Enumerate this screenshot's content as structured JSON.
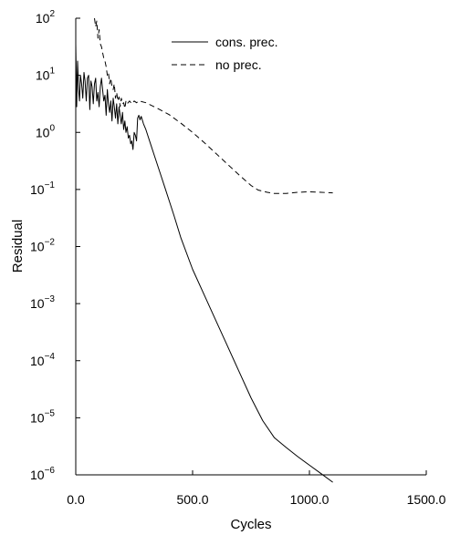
{
  "chart_data": {
    "type": "line",
    "xlabel": "Cycles",
    "ylabel": "Residual",
    "xlim": [
      0,
      1500
    ],
    "ylim_log10": [
      -6,
      2
    ],
    "y_scale": "log",
    "grid": false,
    "legend_position": "top-right",
    "x_ticks": [
      {
        "value": 0,
        "label": "0.0"
      },
      {
        "value": 500,
        "label": "500.0"
      },
      {
        "value": 1000,
        "label": "1000.0"
      },
      {
        "value": 1500,
        "label": "1500.0"
      }
    ],
    "y_ticks": [
      {
        "exp": 2,
        "base": "10",
        "sup": "2"
      },
      {
        "exp": 1,
        "base": "10",
        "sup": "1"
      },
      {
        "exp": 0,
        "base": "10",
        "sup": "0"
      },
      {
        "exp": -1,
        "base": "10",
        "sup": "−1"
      },
      {
        "exp": -2,
        "base": "10",
        "sup": "−2"
      },
      {
        "exp": -3,
        "base": "10",
        "sup": "−3"
      },
      {
        "exp": -4,
        "base": "10",
        "sup": "−4"
      },
      {
        "exp": -5,
        "base": "10",
        "sup": "−5"
      },
      {
        "exp": -6,
        "base": "10",
        "sup": "−6"
      }
    ],
    "series": [
      {
        "name": "cons. prec.",
        "style": "solid",
        "color": "#000000",
        "x": [
          0,
          4,
          8,
          12,
          16,
          20,
          25,
          30,
          35,
          40,
          45,
          50,
          55,
          60,
          65,
          70,
          75,
          80,
          85,
          90,
          95,
          100,
          105,
          110,
          115,
          120,
          125,
          130,
          135,
          140,
          145,
          150,
          155,
          160,
          165,
          170,
          175,
          180,
          185,
          190,
          195,
          200,
          205,
          210,
          215,
          220,
          225,
          230,
          235,
          240,
          245,
          250,
          255,
          260,
          265,
          270,
          275,
          280,
          290,
          300,
          320,
          340,
          360,
          380,
          400,
          420,
          450,
          500,
          550,
          600,
          650,
          700,
          750,
          800,
          850,
          900,
          950,
          1000,
          1050,
          1100
        ],
        "log10y": [
          1.55,
          0.45,
          1.25,
          0.75,
          0.55,
          1.0,
          0.85,
          0.6,
          1.05,
          0.9,
          0.55,
          0.95,
          1.0,
          0.4,
          0.9,
          0.8,
          0.5,
          0.85,
          0.95,
          0.55,
          0.7,
          0.45,
          0.8,
          0.95,
          0.75,
          0.55,
          0.65,
          0.3,
          0.75,
          0.5,
          0.35,
          0.55,
          0.2,
          0.6,
          0.45,
          0.25,
          0.5,
          0.15,
          0.45,
          0.3,
          0.15,
          0.35,
          0.05,
          0.2,
          0.0,
          0.1,
          -0.1,
          -0.05,
          -0.2,
          -0.15,
          -0.3,
          0.0,
          -0.05,
          -0.15,
          0.25,
          0.3,
          0.22,
          0.28,
          0.15,
          0.05,
          -0.2,
          -0.45,
          -0.7,
          -0.95,
          -1.2,
          -1.45,
          -1.85,
          -2.4,
          -2.85,
          -3.3,
          -3.75,
          -4.2,
          -4.65,
          -5.05,
          -5.35,
          -5.52,
          -5.68,
          -5.83,
          -5.98,
          -6.13
        ]
      },
      {
        "name": "no prec.",
        "style": "dashed",
        "color": "#000000",
        "x": [
          80,
          85,
          90,
          95,
          100,
          105,
          110,
          115,
          120,
          125,
          130,
          135,
          140,
          145,
          150,
          155,
          160,
          165,
          170,
          175,
          180,
          185,
          190,
          195,
          200,
          205,
          210,
          215,
          220,
          230,
          240,
          250,
          260,
          270,
          280,
          300,
          350,
          400,
          450,
          500,
          550,
          600,
          650,
          700,
          750,
          780,
          800,
          820,
          850,
          900,
          950,
          1000,
          1050,
          1100
        ],
        "log10y": [
          2.0,
          1.85,
          1.95,
          1.65,
          1.8,
          1.55,
          1.5,
          1.4,
          1.3,
          1.25,
          1.15,
          1.0,
          1.05,
          0.85,
          0.95,
          0.8,
          0.75,
          0.85,
          0.6,
          0.7,
          0.55,
          0.62,
          0.45,
          0.6,
          0.5,
          0.52,
          0.42,
          0.55,
          0.5,
          0.55,
          0.5,
          0.55,
          0.52,
          0.55,
          0.54,
          0.52,
          0.42,
          0.31,
          0.16,
          0.0,
          -0.18,
          -0.37,
          -0.56,
          -0.75,
          -0.93,
          -1.01,
          -1.03,
          -1.05,
          -1.07,
          -1.07,
          -1.05,
          -1.04,
          -1.05,
          -1.06
        ]
      }
    ]
  }
}
